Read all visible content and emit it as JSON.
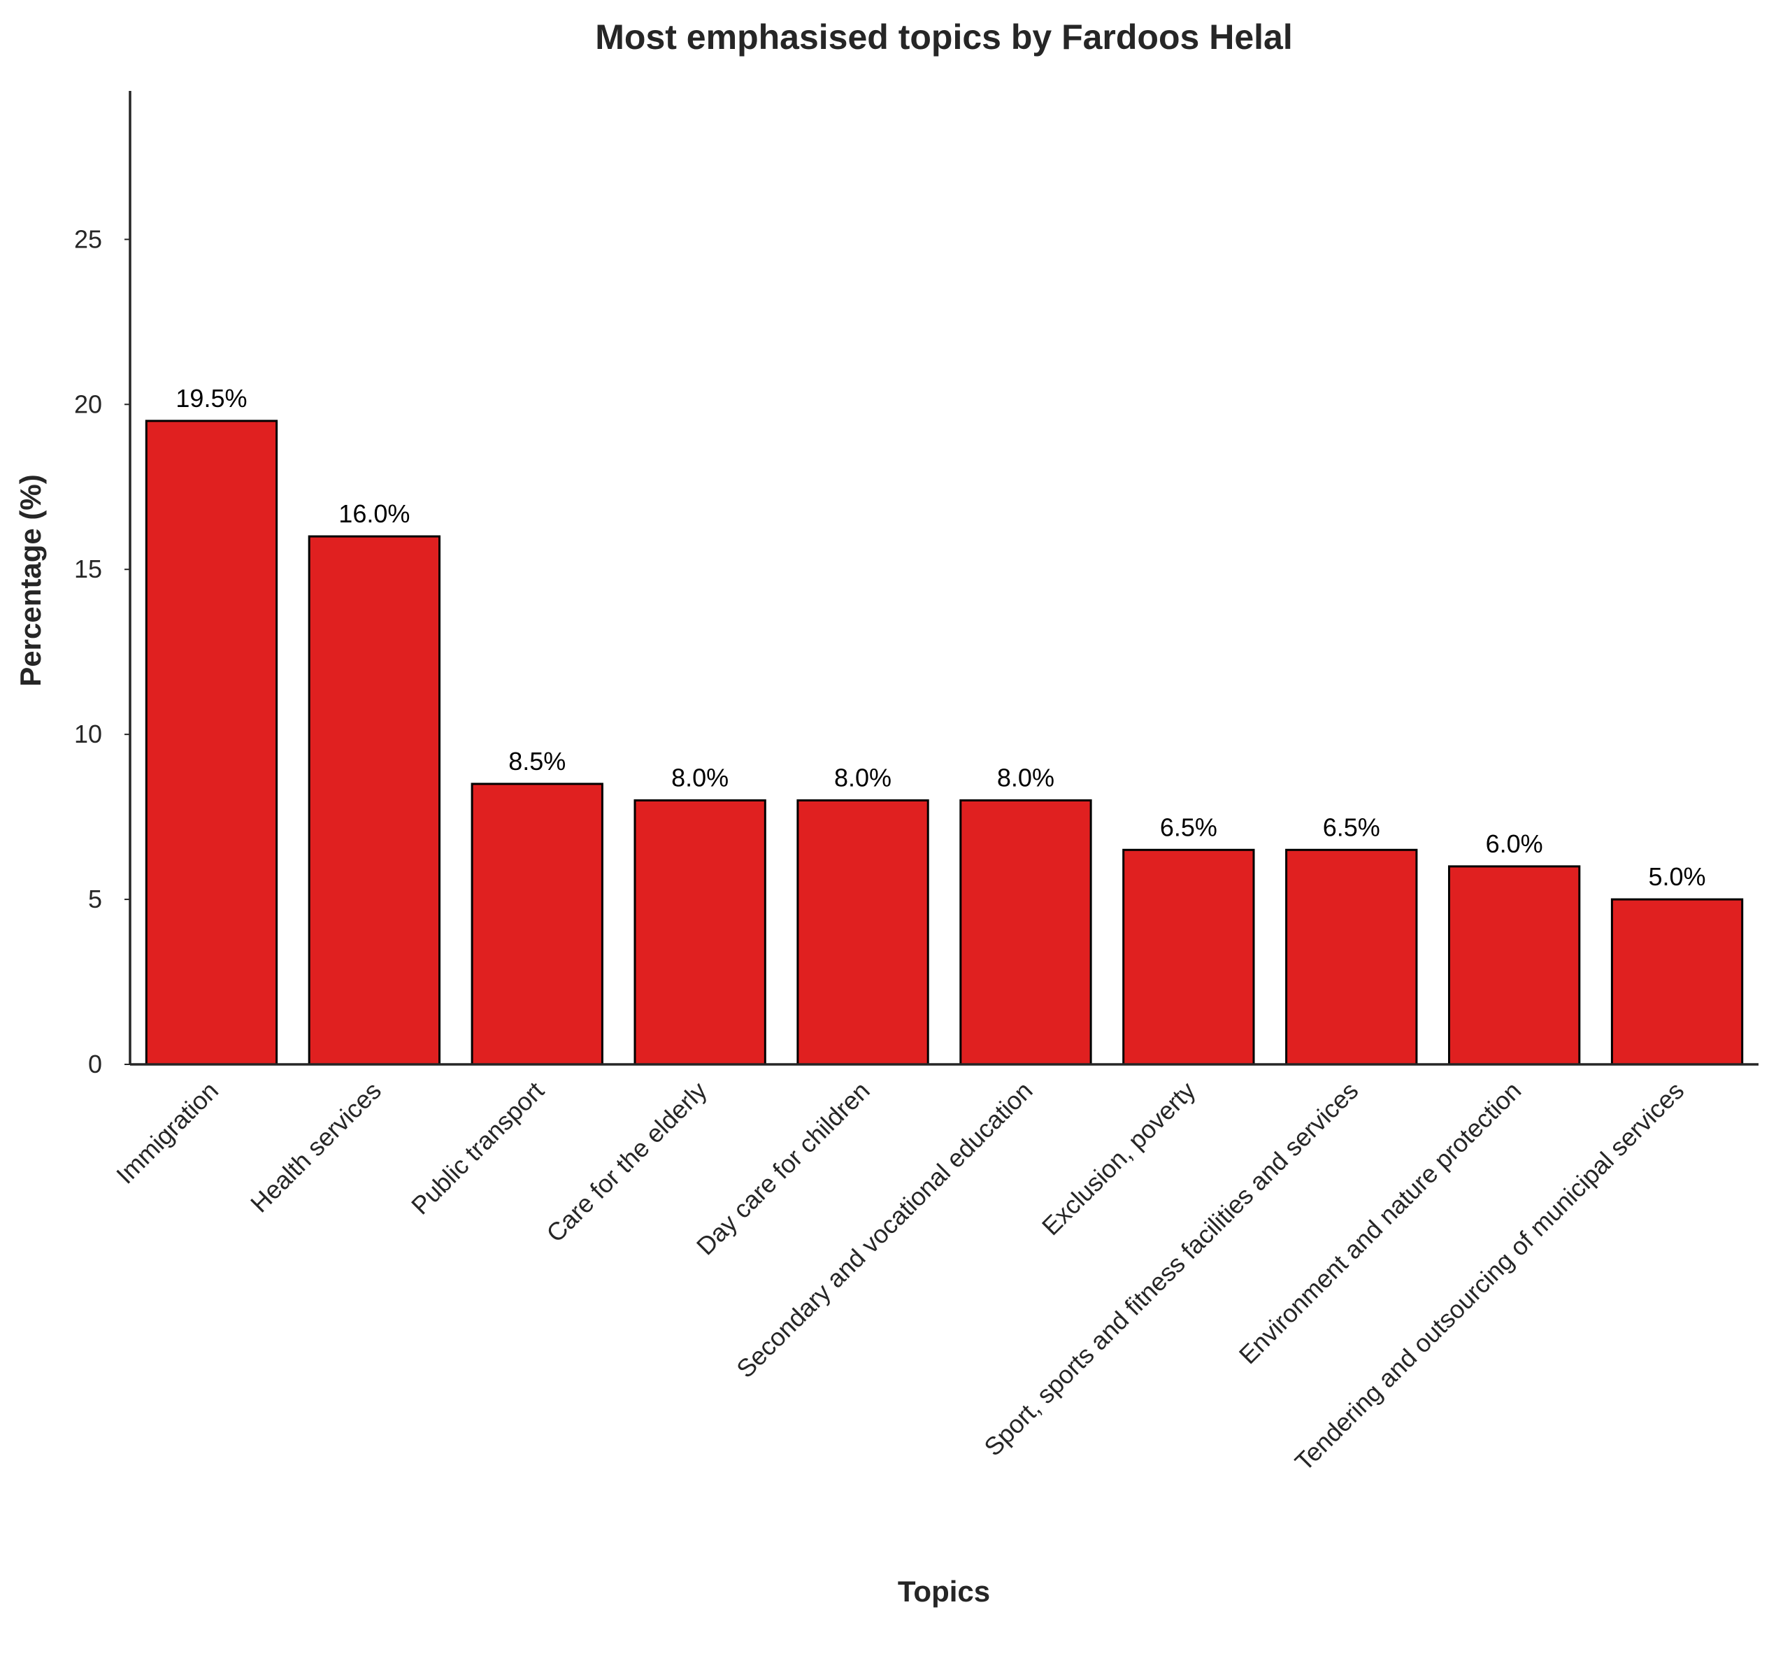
{
  "chart_data": {
    "type": "bar",
    "title": "Most emphasised topics by Fardoos Helal",
    "xlabel": "Topics",
    "ylabel": "Percentage (%)",
    "ylim": [
      0,
      29.5
    ],
    "yticks": [
      0,
      5,
      10,
      15,
      20,
      25
    ],
    "grid": false,
    "bar_color": "#e02020",
    "categories": [
      "Immigration",
      "Health services",
      "Public transport",
      "Care for the elderly",
      "Day care for children",
      "Secondary and vocational education",
      "Exclusion, poverty",
      "Sport, sports and fitness facilities and services",
      "Environment and nature protection",
      "Tendering and outsourcing of municipal services"
    ],
    "values": [
      19.5,
      16.0,
      8.5,
      8.0,
      8.0,
      8.0,
      6.5,
      6.5,
      6.0,
      5.0
    ],
    "data_labels": [
      "19.5%",
      "16.0%",
      "8.5%",
      "8.0%",
      "8.0%",
      "8.0%",
      "6.5%",
      "6.5%",
      "6.0%",
      "5.0%"
    ]
  }
}
